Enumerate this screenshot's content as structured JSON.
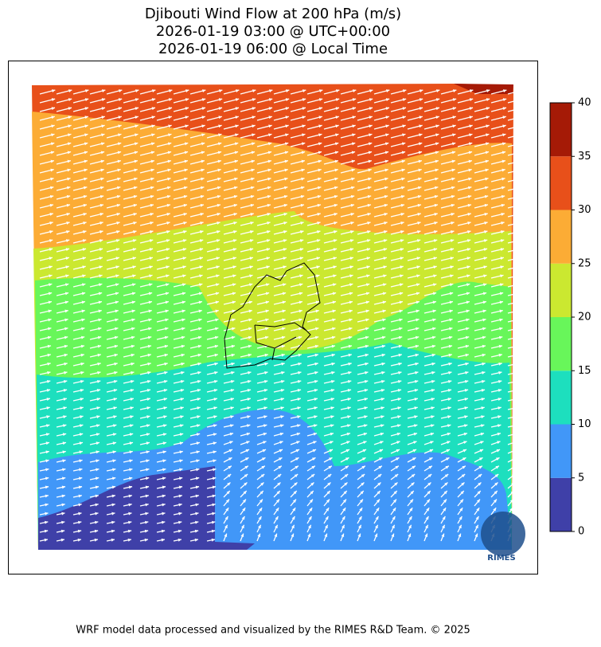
{
  "header": {
    "title_lines": [
      "Djibouti Wind Flow at 200 hPa (m/s)",
      "2026-01-19 03:00 @ UTC+00:00",
      "2026-01-19 06:00 @ Local Time"
    ]
  },
  "colorbar": {
    "lim": [
      0,
      40
    ],
    "ticks": [
      0,
      5,
      10,
      15,
      20,
      25,
      30,
      35,
      40
    ],
    "colors": [
      "#3f40a8",
      "#4197f8",
      "#1ddfbe",
      "#68f65a",
      "#cbe830",
      "#fcac35",
      "#e8501a",
      "#a51a06"
    ]
  },
  "logo": "RIMES",
  "footer": "WRF model data processed and visualized by the RIMES R&D Team. © 2025"
}
